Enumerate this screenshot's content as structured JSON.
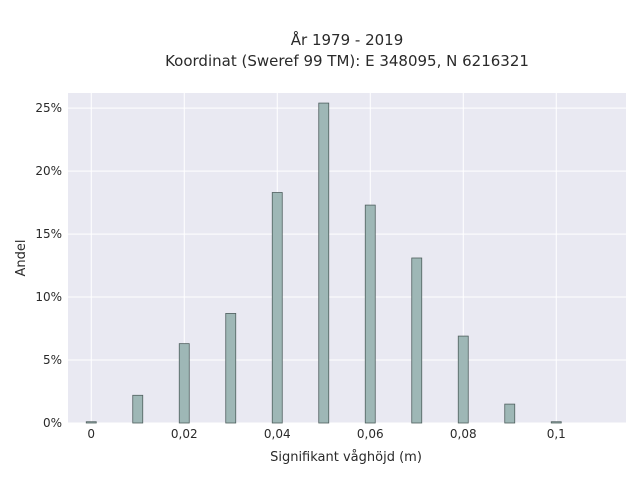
{
  "chart_data": {
    "type": "bar",
    "title": [
      "År 1979 - 2019",
      "Koordinat (Sweref 99 TM): E 348095, N 6216321"
    ],
    "xlabel": "Signifikant våghöjd (m)",
    "ylabel": "Andel",
    "x": [
      0,
      0.01,
      0.02,
      0.03,
      0.04,
      0.05,
      0.06,
      0.07,
      0.08,
      0.09,
      0.1
    ],
    "values": [
      0.1,
      2.2,
      6.3,
      8.7,
      18.3,
      25.4,
      17.3,
      13.1,
      6.9,
      1.5,
      0.1
    ],
    "value_unit": "%",
    "x_ticks": [
      0,
      0.02,
      0.04,
      0.06,
      0.08,
      0.1
    ],
    "x_tick_labels": [
      "0",
      "0,02",
      "0,04",
      "0,06",
      "0,08",
      "0,1"
    ],
    "y_ticks": [
      0,
      5,
      10,
      15,
      20,
      25
    ],
    "y_tick_labels": [
      "0%",
      "5%",
      "10%",
      "15%",
      "20%",
      "25%"
    ],
    "xlim": [
      -0.005,
      0.115
    ],
    "ylim": [
      0,
      26.2
    ],
    "grid": true,
    "colors": {
      "plot_background": "#e9e9f2",
      "grid": "#ffffff",
      "bar_fill": "#9eb7b6",
      "bar_edge": "#4f5f5e"
    }
  }
}
